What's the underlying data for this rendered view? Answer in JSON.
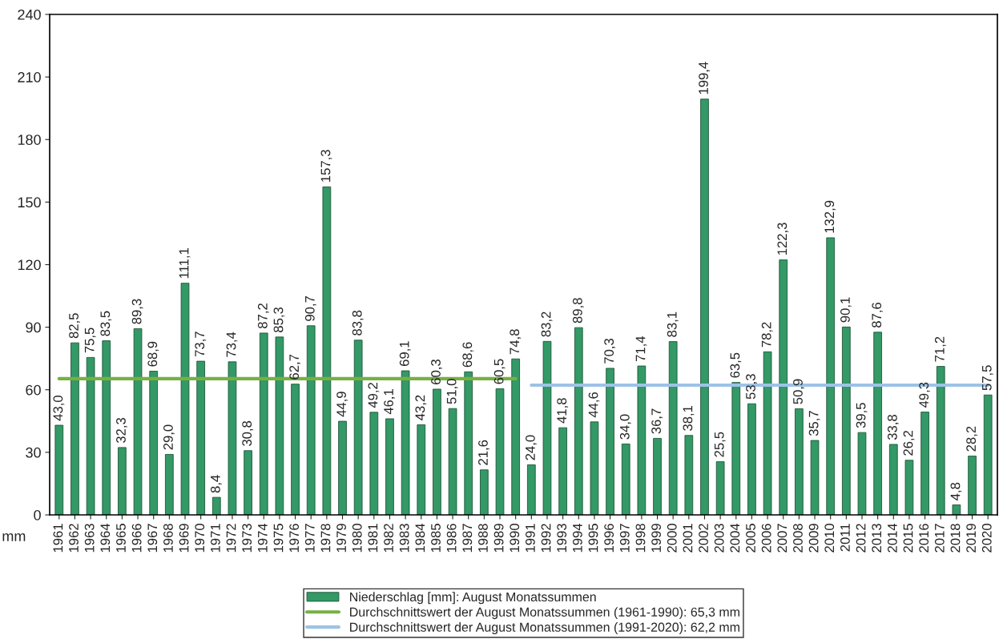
{
  "chart_data": {
    "type": "bar",
    "ylabel": "mm",
    "categories": [
      "1961",
      "1962",
      "1963",
      "1964",
      "1965",
      "1966",
      "1967",
      "1968",
      "1969",
      "1970",
      "1971",
      "1972",
      "1973",
      "1974",
      "1975",
      "1976",
      "1977",
      "1978",
      "1979",
      "1980",
      "1981",
      "1982",
      "1983",
      "1984",
      "1985",
      "1986",
      "1987",
      "1988",
      "1989",
      "1990",
      "1991",
      "1992",
      "1993",
      "1994",
      "1995",
      "1996",
      "1997",
      "1998",
      "1999",
      "2000",
      "2001",
      "2002",
      "2003",
      "2004",
      "2005",
      "2006",
      "2007",
      "2008",
      "2009",
      "2010",
      "2011",
      "2012",
      "2013",
      "2014",
      "2015",
      "2016",
      "2017",
      "2018",
      "2019",
      "2020"
    ],
    "series": [
      {
        "name": "Niederschlag [mm]: August Monatssummen",
        "color": "#339966",
        "values": [
          43.0,
          82.5,
          75.5,
          83.5,
          32.3,
          89.3,
          68.9,
          29.0,
          111.1,
          73.7,
          8.4,
          73.4,
          30.8,
          87.2,
          85.3,
          62.7,
          90.7,
          157.3,
          44.9,
          83.8,
          49.2,
          46.1,
          69.1,
          43.2,
          60.3,
          51.0,
          68.6,
          21.6,
          60.5,
          74.8,
          24.0,
          83.2,
          41.8,
          89.8,
          44.6,
          70.3,
          34.0,
          71.4,
          36.7,
          83.1,
          38.1,
          199.4,
          25.5,
          63.5,
          53.3,
          78.2,
          122.3,
          50.9,
          35.7,
          132.9,
          90.1,
          39.5,
          87.6,
          33.8,
          26.2,
          49.3,
          71.2,
          4.8,
          28.2,
          57.5
        ],
        "value_labels": [
          "43,0",
          "82,5",
          "75,5",
          "83,5",
          "32,3",
          "89,3",
          "68,9",
          "29,0",
          "111,1",
          "73,7",
          "8,4",
          "73,4",
          "30,8",
          "87,2",
          "85,3",
          "62,7",
          "90,7",
          "157,3",
          "44,9",
          "83,8",
          "49,2",
          "46,1",
          "69,1",
          "43,2",
          "60,3",
          "51,0",
          "68,6",
          "21,6",
          "60,5",
          "74,8",
          "24,0",
          "83,2",
          "41,8",
          "89,8",
          "44,6",
          "70,3",
          "34,0",
          "71,4",
          "36,7",
          "83,1",
          "38,1",
          "199,4",
          "25,5",
          "63,5",
          "53,3",
          "78,2",
          "122,3",
          "50,9",
          "35,7",
          "132,9",
          "90,1",
          "39,5",
          "87,6",
          "33,8",
          "26,2",
          "49,3",
          "71,2",
          "4,8",
          "28,2",
          "57,5"
        ]
      },
      {
        "name": "Durchschnittswert der August Monatssummen (1961-1990): 65,3 mm",
        "type": "line",
        "color": "#77b041",
        "values": [
          65.3,
          65.3,
          65.3,
          65.3,
          65.3,
          65.3,
          65.3,
          65.3,
          65.3,
          65.3,
          65.3,
          65.3,
          65.3,
          65.3,
          65.3,
          65.3,
          65.3,
          65.3,
          65.3,
          65.3,
          65.3,
          65.3,
          65.3,
          65.3,
          65.3,
          65.3,
          65.3,
          65.3,
          65.3,
          65.3,
          null,
          null,
          null,
          null,
          null,
          null,
          null,
          null,
          null,
          null,
          null,
          null,
          null,
          null,
          null,
          null,
          null,
          null,
          null,
          null,
          null,
          null,
          null,
          null,
          null,
          null,
          null,
          null,
          null,
          null
        ]
      },
      {
        "name": "Durchschnittswert der August Monatssummen (1991-2020): 62,2 mm",
        "type": "line",
        "color": "#9dc3e6",
        "values": [
          null,
          null,
          null,
          null,
          null,
          null,
          null,
          null,
          null,
          null,
          null,
          null,
          null,
          null,
          null,
          null,
          null,
          null,
          null,
          null,
          null,
          null,
          null,
          null,
          null,
          null,
          null,
          null,
          null,
          null,
          62.2,
          62.2,
          62.2,
          62.2,
          62.2,
          62.2,
          62.2,
          62.2,
          62.2,
          62.2,
          62.2,
          62.2,
          62.2,
          62.2,
          62.2,
          62.2,
          62.2,
          62.2,
          62.2,
          62.2,
          62.2,
          62.2,
          62.2,
          62.2,
          62.2,
          62.2,
          62.2,
          62.2,
          62.2,
          62.2
        ]
      }
    ],
    "ylim": [
      0,
      240
    ],
    "yticks": [
      0,
      30,
      60,
      90,
      120,
      150,
      180,
      210,
      240
    ],
    "grid": false,
    "legend": "bottom"
  }
}
